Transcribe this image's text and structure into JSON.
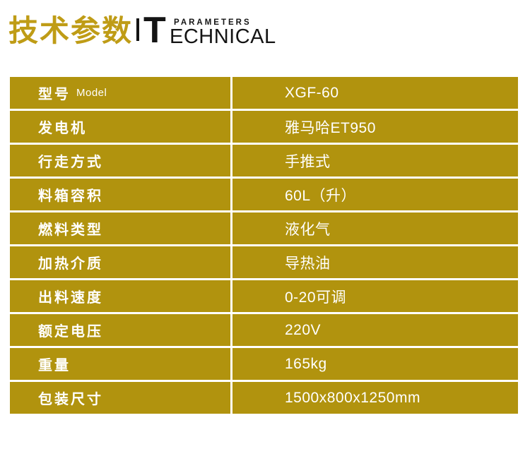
{
  "header": {
    "title": "技术参数",
    "logo": {
      "initial": "T",
      "word_rest": "ECHNICAL",
      "superscript": "PARAMETERS"
    }
  },
  "colors": {
    "row_gold": "#b1930e",
    "title_gold": "#bf9c16",
    "row_text": "#ffffff",
    "logo_black": "#141414"
  },
  "table": {
    "rows": [
      {
        "label": "型号",
        "label_en": "Model",
        "value": "XGF-60"
      },
      {
        "label": "发电机",
        "label_en": "",
        "value": "雅马哈ET950"
      },
      {
        "label": "行走方式",
        "label_en": "",
        "value": "手推式"
      },
      {
        "label": "料箱容积",
        "label_en": "",
        "value": "60L（升）"
      },
      {
        "label": "燃料类型",
        "label_en": "",
        "value": "液化气"
      },
      {
        "label": "加热介质",
        "label_en": "",
        "value": "导热油"
      },
      {
        "label": "出料速度",
        "label_en": "",
        "value": "0-20可调"
      },
      {
        "label": "额定电压",
        "label_en": "",
        "value": "220V"
      },
      {
        "label": "重量",
        "label_en": "",
        "value": "165kg"
      },
      {
        "label": "包装尺寸",
        "label_en": "",
        "value": "1500x800x1250mm"
      }
    ]
  }
}
